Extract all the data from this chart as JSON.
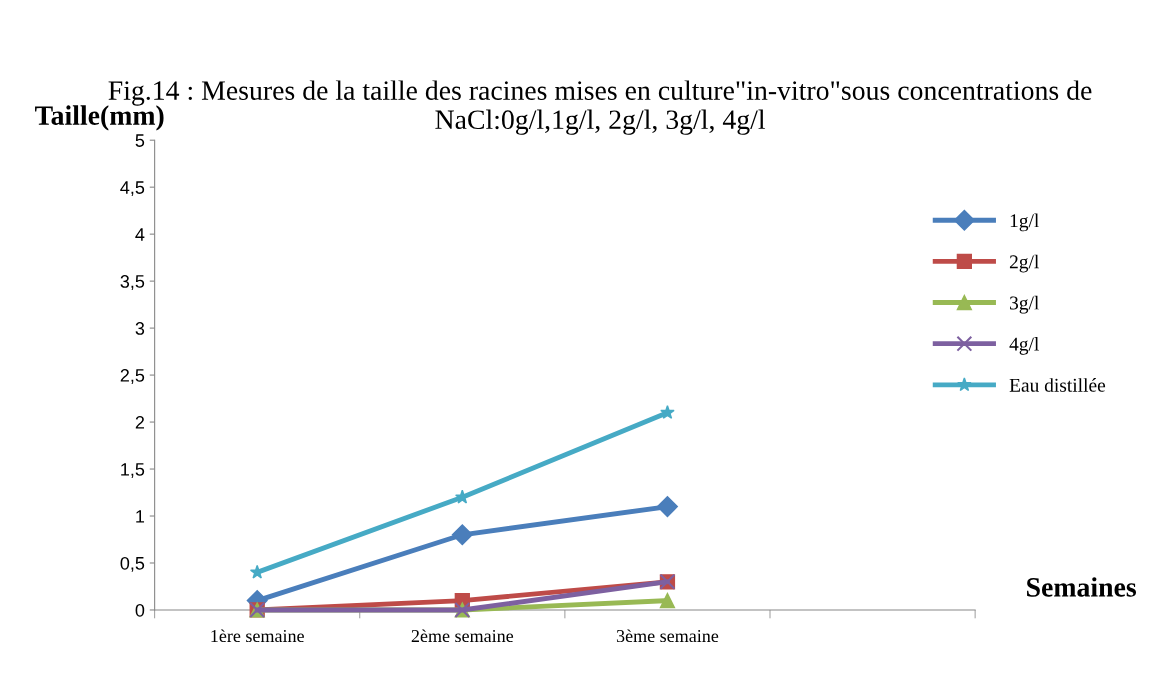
{
  "chart_data": {
    "type": "line",
    "title": "Fig.14 : Mesures de la taille des racines mises en culture\"in-vitro\"sous concentrations de NaCl:0g/l,1g/l, 2g/l, 3g/l, 4g/l",
    "xlabel": "Semaines",
    "ylabel": "Taille(mm)",
    "categories": [
      "1ère semaine",
      "2ème semaine",
      "3ème semaine",
      null
    ],
    "series": [
      {
        "name": "1g/l",
        "color": "#4a7ebb",
        "marker": "diamond",
        "values": [
          0.1,
          0.8,
          1.1,
          null
        ]
      },
      {
        "name": "2g/l",
        "color": "#be4b48",
        "marker": "square",
        "values": [
          0,
          0.1,
          0.3,
          null
        ]
      },
      {
        "name": "3g/l",
        "color": "#98b954",
        "marker": "triangle",
        "values": [
          0,
          0,
          0.1,
          null
        ]
      },
      {
        "name": "4g/l",
        "color": "#7d60a0",
        "marker": "cross",
        "values": [
          0,
          0,
          0.3,
          null
        ]
      },
      {
        "name": "Eau distillée",
        "color": "#46aac5",
        "marker": "star",
        "values": [
          0.4,
          1.2,
          2.1,
          null
        ]
      }
    ],
    "ylim": [
      0,
      5
    ],
    "yticks": [
      0,
      {
        "value": 0.5,
        "label": "0,5"
      },
      1,
      {
        "value": 1.5,
        "label": "1,5"
      },
      2,
      {
        "value": 2.5,
        "label": "2,5"
      },
      3,
      {
        "value": 3.5,
        "label": "3,5"
      },
      4,
      {
        "value": 4.5,
        "label": "4,5"
      },
      5
    ],
    "grid": false,
    "legend": "right"
  }
}
